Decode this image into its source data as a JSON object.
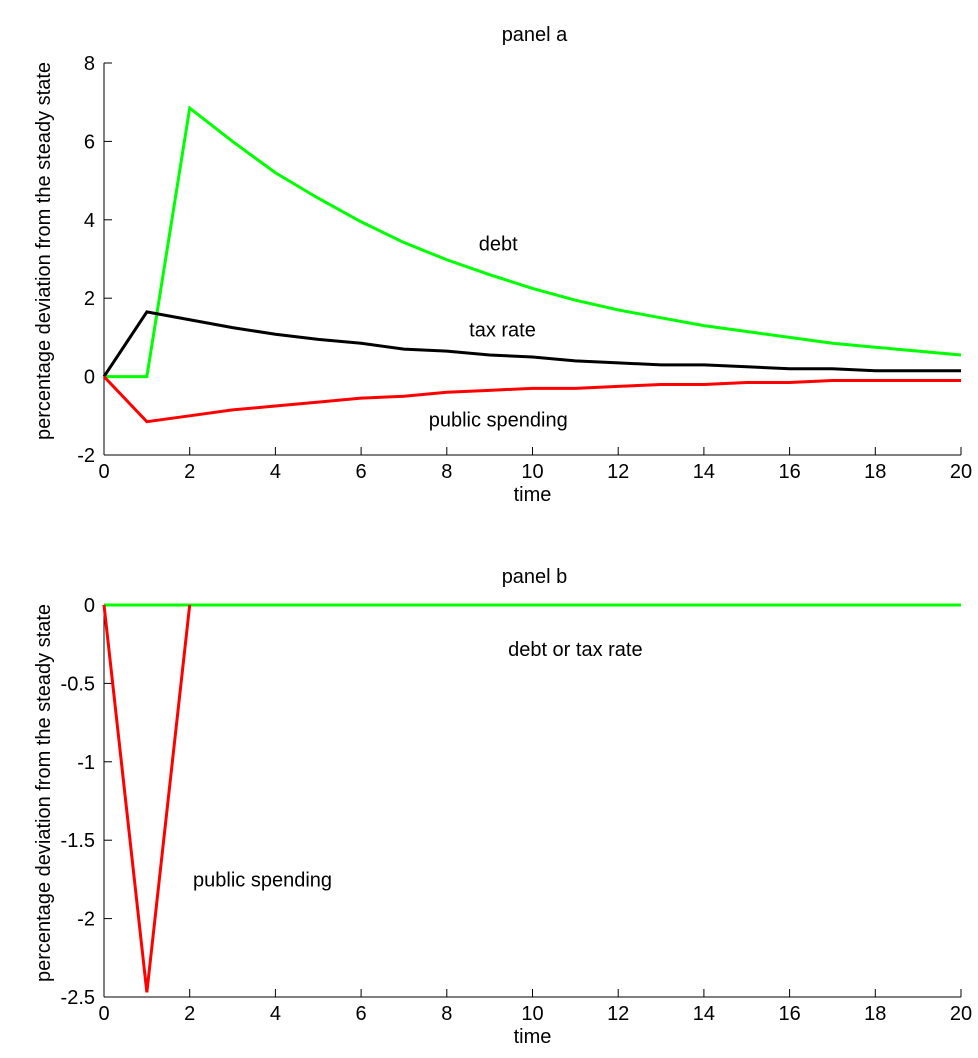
{
  "chart_data": [
    {
      "type": "line",
      "title": "panel a",
      "xlabel": "time",
      "ylabel": "percentage deviation from the steady state",
      "xlim": [
        0,
        20
      ],
      "ylim": [
        -2,
        8
      ],
      "xticks": [
        0,
        2,
        4,
        6,
        8,
        10,
        12,
        14,
        16,
        18,
        20
      ],
      "yticks": [
        -2,
        0,
        2,
        4,
        6,
        8
      ],
      "grid": false,
      "legend": "none",
      "x": [
        0,
        1,
        2,
        3,
        4,
        5,
        6,
        7,
        8,
        9,
        10,
        11,
        12,
        13,
        14,
        15,
        16,
        17,
        18,
        19,
        20
      ],
      "series": [
        {
          "name": "debt",
          "color": "#00ff00",
          "values": [
            0,
            0,
            6.85,
            6.0,
            5.2,
            4.55,
            3.95,
            3.42,
            2.98,
            2.6,
            2.25,
            1.95,
            1.7,
            1.5,
            1.3,
            1.15,
            1.0,
            0.85,
            0.75,
            0.65,
            0.55
          ]
        },
        {
          "name": "tax rate",
          "color": "#000000",
          "values": [
            0,
            1.65,
            1.45,
            1.25,
            1.08,
            0.95,
            0.85,
            0.7,
            0.65,
            0.55,
            0.5,
            0.4,
            0.35,
            0.3,
            0.3,
            0.25,
            0.2,
            0.2,
            0.15,
            0.15,
            0.15
          ]
        },
        {
          "name": "public spending",
          "color": "#ff0000",
          "values": [
            0,
            -1.15,
            -1.0,
            -0.85,
            -0.75,
            -0.65,
            -0.55,
            -0.5,
            -0.4,
            -0.35,
            -0.3,
            -0.3,
            -0.25,
            -0.2,
            -0.2,
            -0.15,
            -0.15,
            -0.1,
            -0.1,
            -0.1,
            -0.1
          ]
        }
      ],
      "annotations": [
        {
          "text": "debt",
          "x": 9.2,
          "y": 3.4
        },
        {
          "text": "tax rate",
          "x": 9.3,
          "y": 1.2
        },
        {
          "text": "public spending",
          "x": 9.2,
          "y": -1.1
        }
      ]
    },
    {
      "type": "line",
      "title": "panel b",
      "xlabel": "time",
      "ylabel": "percentage deviation from the steady state",
      "xlim": [
        0,
        20
      ],
      "ylim": [
        -2.5,
        0
      ],
      "xticks": [
        0,
        2,
        4,
        6,
        8,
        10,
        12,
        14,
        16,
        18,
        20
      ],
      "yticks": [
        -2.5,
        -2,
        -1.5,
        -1,
        -0.5,
        0
      ],
      "ytick_labels": [
        "-2.5",
        "-2",
        "-1.5",
        "-1",
        "-0.5",
        "0"
      ],
      "grid": false,
      "legend": "none",
      "series": [
        {
          "name": "debt or tax rate",
          "color": "#00ff00",
          "x": [
            0,
            20
          ],
          "values": [
            0,
            0
          ]
        },
        {
          "name": "public spending",
          "color": "#ff0000",
          "x": [
            0,
            1,
            2
          ],
          "values": [
            0,
            -2.47,
            0
          ]
        }
      ],
      "annotations": [
        {
          "text": "debt or tax rate",
          "x": 11.0,
          "y": -0.28
        },
        {
          "text": "public spending",
          "x": 3.7,
          "y": -1.75
        }
      ]
    }
  ]
}
